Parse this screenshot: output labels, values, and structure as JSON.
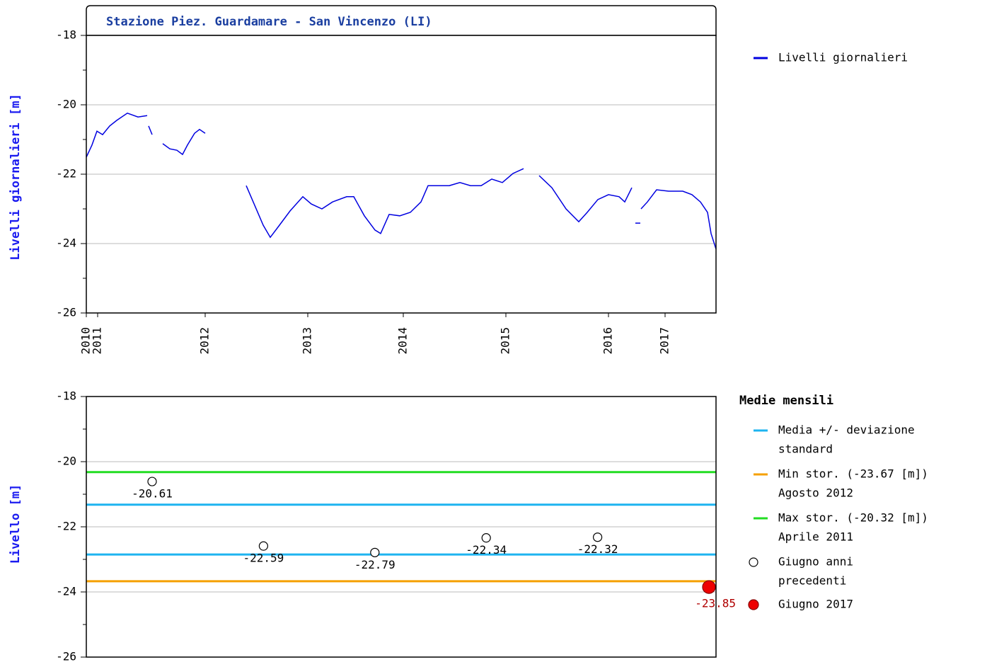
{
  "chart_data": [
    {
      "type": "line",
      "title": "Stazione Piez. Guardamare - San Vincenzo (LI)",
      "ylabel": "Livelli giornalieri [m]",
      "ylim": [
        -26,
        -18
      ],
      "yticks": [
        -18,
        -20,
        -22,
        -24,
        -26
      ],
      "grid": true,
      "xlim": [
        0,
        890
      ],
      "xticks": [
        {
          "value": 0,
          "label": "2010"
        },
        {
          "value": 16,
          "label": "2011"
        },
        {
          "value": 168,
          "label": "2012"
        },
        {
          "value": 313,
          "label": "2013"
        },
        {
          "value": 448,
          "label": "2014"
        },
        {
          "value": 593,
          "label": "2015"
        },
        {
          "value": 738,
          "label": "2016"
        },
        {
          "value": 818,
          "label": "2017"
        }
      ],
      "series": [
        {
          "name": "Livelli giornalieri",
          "color": "#0000e0",
          "x": [
            0,
            8,
            15,
            23,
            33,
            43,
            58,
            73,
            86,
            87,
            88,
            93,
            94,
            108,
            118,
            128,
            136,
            143,
            153,
            160,
            168,
            169,
            226,
            238,
            250,
            260,
            273,
            288,
            306,
            318,
            333,
            348,
            368,
            378,
            393,
            408,
            416,
            428,
            443,
            458,
            473,
            483,
            498,
            513,
            528,
            543,
            558,
            573,
            588,
            603,
            618,
            619,
            640,
            658,
            678,
            696,
            708,
            723,
            738,
            753,
            761,
            771,
            772,
            776,
            783,
            783,
            784,
            793,
            806,
            823,
            843,
            856,
            868,
            878,
            883,
            890
          ],
          "values": [
            -21.51,
            -21.16,
            -20.76,
            -20.86,
            -20.61,
            -20.45,
            -20.24,
            -20.35,
            -20.31,
            null,
            -20.61,
            -20.86,
            null,
            -21.12,
            -21.27,
            -21.31,
            -21.43,
            -21.16,
            -20.82,
            -20.71,
            -20.82,
            null,
            -22.33,
            -22.9,
            -23.47,
            -23.82,
            -23.47,
            -23.06,
            -22.65,
            -22.86,
            -23.0,
            -22.8,
            -22.65,
            -22.65,
            -23.2,
            -23.61,
            -23.71,
            -23.16,
            -23.2,
            -23.1,
            -22.8,
            -22.33,
            -22.33,
            -22.33,
            -22.24,
            -22.33,
            -22.33,
            -22.14,
            -22.24,
            -21.98,
            -21.84,
            null,
            -22.04,
            -22.39,
            -23.0,
            -23.37,
            -23.1,
            -22.73,
            -22.59,
            -22.65,
            -22.8,
            -22.39,
            null,
            -23.41,
            -23.41,
            null,
            -23.0,
            -22.8,
            -22.45,
            -22.49,
            -22.49,
            -22.59,
            -22.8,
            -23.1,
            -23.71,
            -24.16
          ]
        }
      ]
    },
    {
      "type": "scatter",
      "ylabel": "Livello [m]",
      "ylim": [
        -26,
        -18
      ],
      "yticks": [
        -18,
        -20,
        -22,
        -24,
        -26
      ],
      "grid": true,
      "legend_title": "Medie mensili",
      "categories": [
        null,
        null,
        null,
        null,
        null,
        null
      ],
      "reference_lines": [
        {
          "name": [
            "Media +/- deviazione",
            "standard"
          ],
          "color": "#1eb4f0",
          "values": [
            -21.32,
            -22.85
          ]
        },
        {
          "name": [
            "Min stor. (-23.67 [m])",
            "Agosto 2012"
          ],
          "color": "#f5a000",
          "values": [
            -23.67
          ]
        },
        {
          "name": [
            "Max stor. (-20.32 [m])",
            "Aprile 2011"
          ],
          "color": "#22dd22",
          "values": [
            -20.32
          ]
        }
      ],
      "series": [
        {
          "name": [
            "Giugno anni",
            "precedenti"
          ],
          "color": "#ffffff",
          "values": [
            -20.61,
            -22.59,
            -22.79,
            -22.34,
            -22.32,
            null
          ]
        },
        {
          "name": [
            "Giugno 2017"
          ],
          "color": "#ee0000",
          "values": [
            null,
            null,
            null,
            null,
            null,
            -23.85
          ]
        }
      ]
    }
  ]
}
